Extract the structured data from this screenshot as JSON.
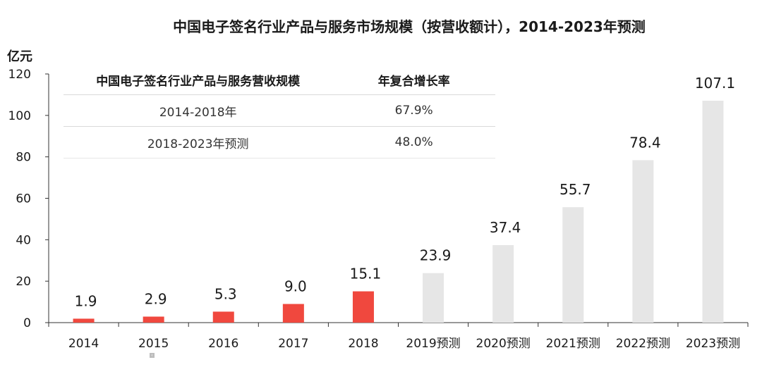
{
  "chart_data": {
    "type": "bar",
    "title": "中国电子签名行业产品与服务市场规模（按营收额计），2014-2023年预测",
    "ylabel": "亿元",
    "xlabel": "",
    "ylim": [
      0,
      120
    ],
    "yticks": [
      0,
      20,
      40,
      60,
      80,
      100,
      120
    ],
    "categories": [
      "2014",
      "2015",
      "2016",
      "2017",
      "2018",
      "2019预测",
      "2020预测",
      "2021预测",
      "2022预测",
      "2023预测"
    ],
    "values": [
      1.9,
      2.9,
      5.3,
      9.0,
      15.1,
      23.9,
      37.4,
      55.7,
      78.4,
      107.1
    ],
    "value_labels": [
      "1.9",
      "2.9",
      "5.3",
      "9.0",
      "15.1",
      "23.9",
      "37.4",
      "55.7",
      "78.4",
      "107.1"
    ],
    "actual_color": "#f0483e",
    "forecast_color": "#e6e6e6",
    "actual_count": 5,
    "grid": false
  },
  "cagr_table": {
    "headers": [
      "中国电子签名行业产品与服务营收规模",
      "年复合增长率"
    ],
    "rows": [
      [
        "2014-2018年",
        "67.9%"
      ],
      [
        "2018-2023年预测",
        "48.0%"
      ]
    ]
  },
  "marker_glyph": "‹"
}
